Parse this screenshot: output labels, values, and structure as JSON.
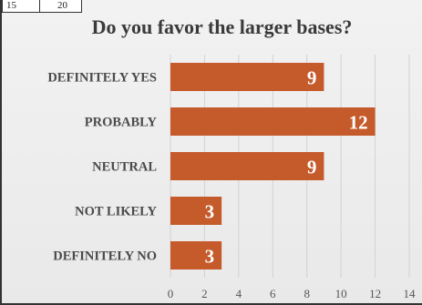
{
  "top_strip": {
    "left_value": "15",
    "right_value": "20"
  },
  "chart_data": {
    "type": "bar",
    "orientation": "horizontal",
    "title": "Do you favor the larger bases?",
    "categories": [
      "DEFINITELY YES",
      "PROBABLY",
      "NEUTRAL",
      "NOT LIKELY",
      "DEFINITELY NO"
    ],
    "values": [
      9,
      12,
      9,
      3,
      3
    ],
    "xlim": [
      0,
      14
    ],
    "xticks": [
      0,
      2,
      4,
      6,
      8,
      10,
      12,
      14
    ],
    "grid": true,
    "bar_color": "#c55a2b",
    "label_color": "#ffffff"
  }
}
